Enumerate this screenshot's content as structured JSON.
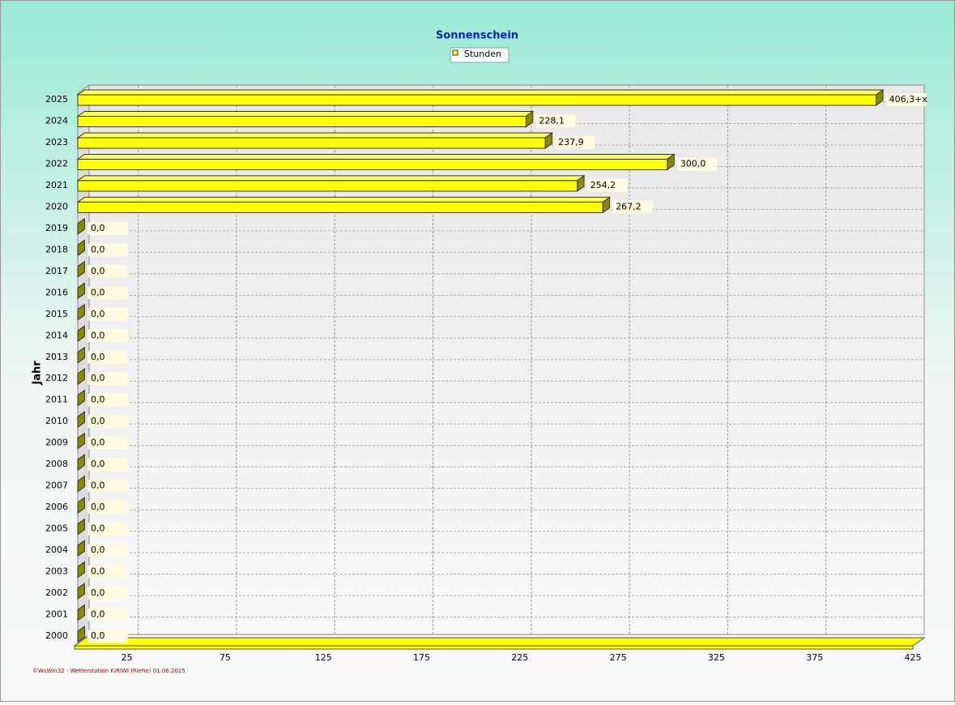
{
  "chart_data": {
    "type": "bar",
    "orientation": "horizontal",
    "title": "Sonnenschein",
    "y_label": "Jahr",
    "categories": [
      "2025",
      "2024",
      "2023",
      "2022",
      "2021",
      "2020",
      "2019",
      "2018",
      "2017",
      "2016",
      "2015",
      "2014",
      "2013",
      "2012",
      "2011",
      "2010",
      "2009",
      "2008",
      "2007",
      "2006",
      "2005",
      "2004",
      "2003",
      "2002",
      "2001",
      "2000"
    ],
    "series": [
      {
        "name": "Stunden",
        "color": "#ffff00",
        "values": [
          406.3,
          228.1,
          237.9,
          300.0,
          254.2,
          267.2,
          0,
          0,
          0,
          0,
          0,
          0,
          0,
          0,
          0,
          0,
          0,
          0,
          0,
          0,
          0,
          0,
          0,
          0,
          0,
          0
        ],
        "value_labels": [
          "406,3+x",
          "228,1",
          "237,9",
          "300,0",
          "254,2",
          "267,2",
          "0,0",
          "0,0",
          "0,0",
          "0,0",
          "0,0",
          "0,0",
          "0,0",
          "0,0",
          "0,0",
          "0,0",
          "0,0",
          "0,0",
          "0,0",
          "0,0",
          "0,0",
          "0,0",
          "0,0",
          "0,0",
          "0,0",
          "0,0"
        ]
      }
    ],
    "xlim": [
      0,
      425
    ],
    "xticks": [
      25,
      75,
      125,
      175,
      225,
      275,
      325,
      375,
      425
    ],
    "grid": true,
    "footer": "©WsWin32 - Wetterstation KIRIWI (Riehe) 01.06.2025"
  }
}
